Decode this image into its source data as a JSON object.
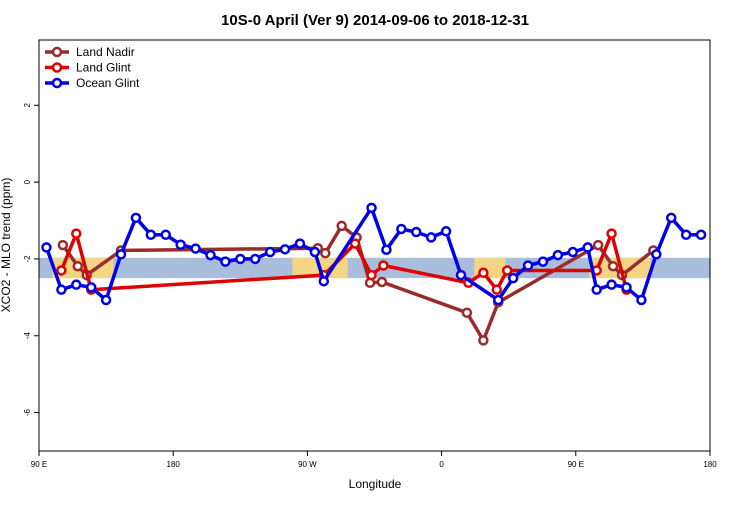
{
  "chart_data": {
    "type": "line",
    "title": "10S-0 April (Ver 9)   2014-09-06 to 2018-12-31",
    "xlabel": "Longitude",
    "ylabel": "XCO2 - MLO trend (ppm)",
    "xlim": [
      90,
      540
    ],
    "ylim": [
      -7,
      3.7
    ],
    "x_ticks": [
      {
        "value": 90,
        "label": "90 E"
      },
      {
        "value": 180,
        "label": "180"
      },
      {
        "value": 270,
        "label": "90 W"
      },
      {
        "value": 360,
        "label": "0"
      },
      {
        "value": 450,
        "label": "90 E"
      },
      {
        "value": 540,
        "label": "180"
      }
    ],
    "y_ticks": [
      {
        "value": 2,
        "label": "2"
      },
      {
        "value": 0,
        "label": "0"
      },
      {
        "value": -2,
        "label": "-2"
      },
      {
        "value": -4,
        "label": "-4"
      },
      {
        "value": -6,
        "label": "-6"
      }
    ],
    "band": {
      "ymin": -2.5,
      "ymax": -1.97,
      "color": "#a8bedc",
      "land_color": "#fcd77a"
    },
    "land_spans": [
      [
        99,
        140
      ],
      [
        260,
        297
      ],
      [
        382,
        403
      ],
      [
        459,
        500
      ]
    ],
    "legend_position": "top-left",
    "series": [
      {
        "name": "Land Nadir",
        "color": "#9b2b2b",
        "points": [
          [
            106,
            -1.64
          ],
          [
            116,
            -2.19
          ],
          [
            122,
            -2.42
          ],
          [
            145,
            -1.78
          ],
          [
            277,
            -1.72
          ],
          [
            282,
            -1.85
          ],
          [
            293,
            -1.14
          ],
          [
            303,
            -1.44
          ],
          [
            312,
            -2.62
          ],
          [
            320,
            -2.6
          ],
          [
            377,
            -3.4
          ],
          [
            388,
            -4.12
          ],
          [
            398,
            -3.13
          ],
          [
            465,
            -1.64
          ],
          [
            475,
            -2.19
          ],
          [
            481,
            -2.42
          ],
          [
            502,
            -1.78
          ]
        ]
      },
      {
        "name": "Land Glint",
        "color": "#e00000",
        "points": [
          [
            105,
            -2.3
          ],
          [
            115,
            -1.34
          ],
          [
            125,
            -2.8
          ],
          [
            281,
            -2.42
          ],
          [
            302,
            -1.6
          ],
          [
            313,
            -2.42
          ],
          [
            321,
            -2.17
          ],
          [
            378,
            -2.62
          ],
          [
            388,
            -2.36
          ],
          [
            397,
            -2.8
          ],
          [
            404,
            -2.3
          ],
          [
            464,
            -2.3
          ],
          [
            474,
            -1.34
          ],
          [
            484,
            -2.8
          ]
        ]
      },
      {
        "name": "Ocean Glint",
        "color": "#0000e6",
        "points": [
          [
            95,
            -1.7
          ],
          [
            105,
            -2.8
          ],
          [
            115,
            -2.67
          ],
          [
            125,
            -2.74
          ],
          [
            135,
            -3.07
          ],
          [
            145,
            -1.88
          ],
          [
            155,
            -0.93
          ],
          [
            165,
            -1.37
          ],
          [
            175,
            -1.37
          ],
          [
            185,
            -1.63
          ],
          [
            195,
            -1.73
          ],
          [
            205,
            -1.9
          ],
          [
            215,
            -2.07
          ],
          [
            225,
            -2.0
          ],
          [
            235,
            -2.0
          ],
          [
            245,
            -1.82
          ],
          [
            255,
            -1.75
          ],
          [
            265,
            -1.6
          ],
          [
            275,
            -1.82
          ],
          [
            281,
            -2.58
          ],
          [
            313,
            -0.67
          ],
          [
            323,
            -1.76
          ],
          [
            333,
            -1.22
          ],
          [
            343,
            -1.3
          ],
          [
            353,
            -1.44
          ],
          [
            363,
            -1.28
          ],
          [
            373,
            -2.42
          ],
          [
            398,
            -3.07
          ],
          [
            408,
            -2.5
          ],
          [
            418,
            -2.17
          ],
          [
            428,
            -2.07
          ],
          [
            438,
            -1.9
          ],
          [
            448,
            -1.82
          ],
          [
            458,
            -1.7
          ],
          [
            464,
            -2.8
          ],
          [
            474,
            -2.67
          ],
          [
            484,
            -2.74
          ],
          [
            494,
            -3.07
          ],
          [
            504,
            -1.88
          ],
          [
            514,
            -0.93
          ],
          [
            524,
            -1.37
          ],
          [
            534,
            -1.37
          ]
        ]
      }
    ]
  }
}
